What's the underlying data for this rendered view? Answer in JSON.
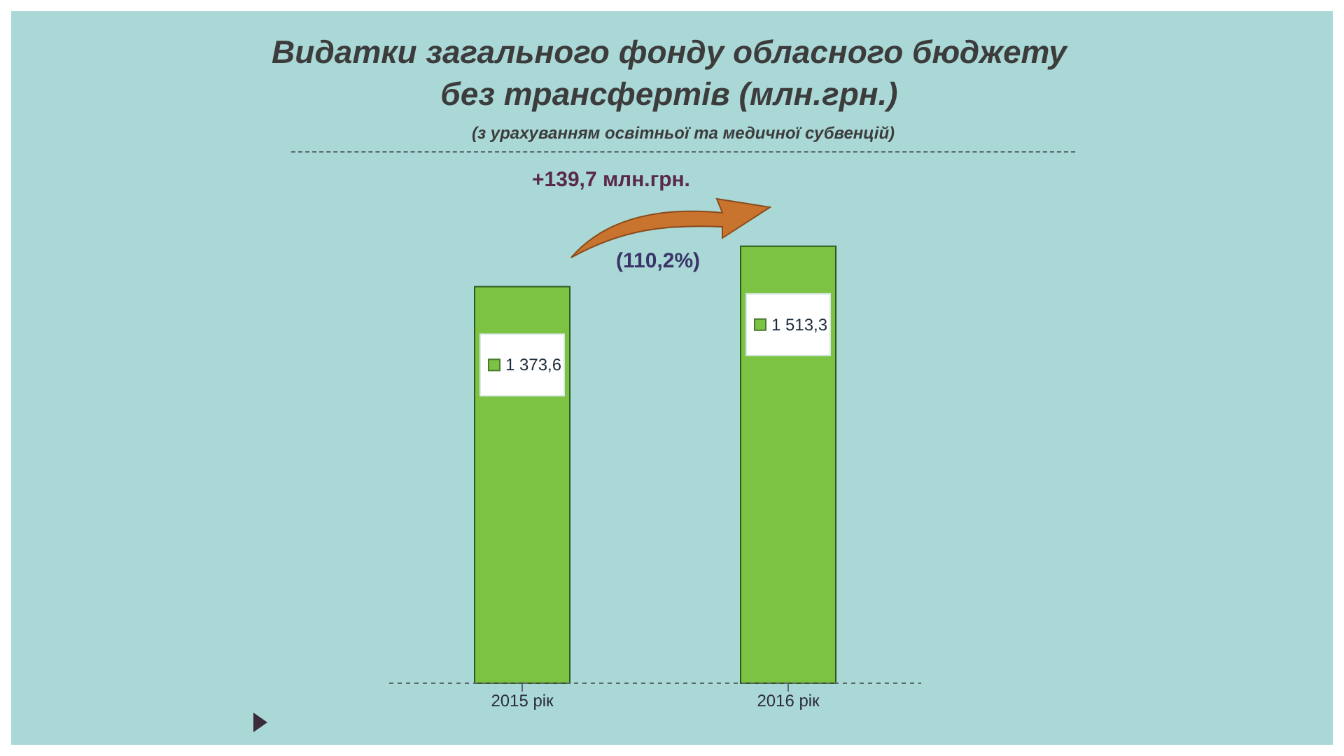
{
  "chart_data": {
    "type": "bar",
    "title": "Видатки загального фонду обласного бюджету без трансфертів (млн.грн.)",
    "subtitle": "(з урахуванням освітньої та медичної субвенцій)",
    "categories": [
      "2015 рік",
      "2016 рік"
    ],
    "values": [
      1373.6,
      1513.3
    ],
    "color": "#7cc243",
    "value_labels": [
      "1 373,6",
      "1 513,3"
    ],
    "annotations": [
      "+139,7 млн.грн.",
      "(110,2%)"
    ]
  }
}
